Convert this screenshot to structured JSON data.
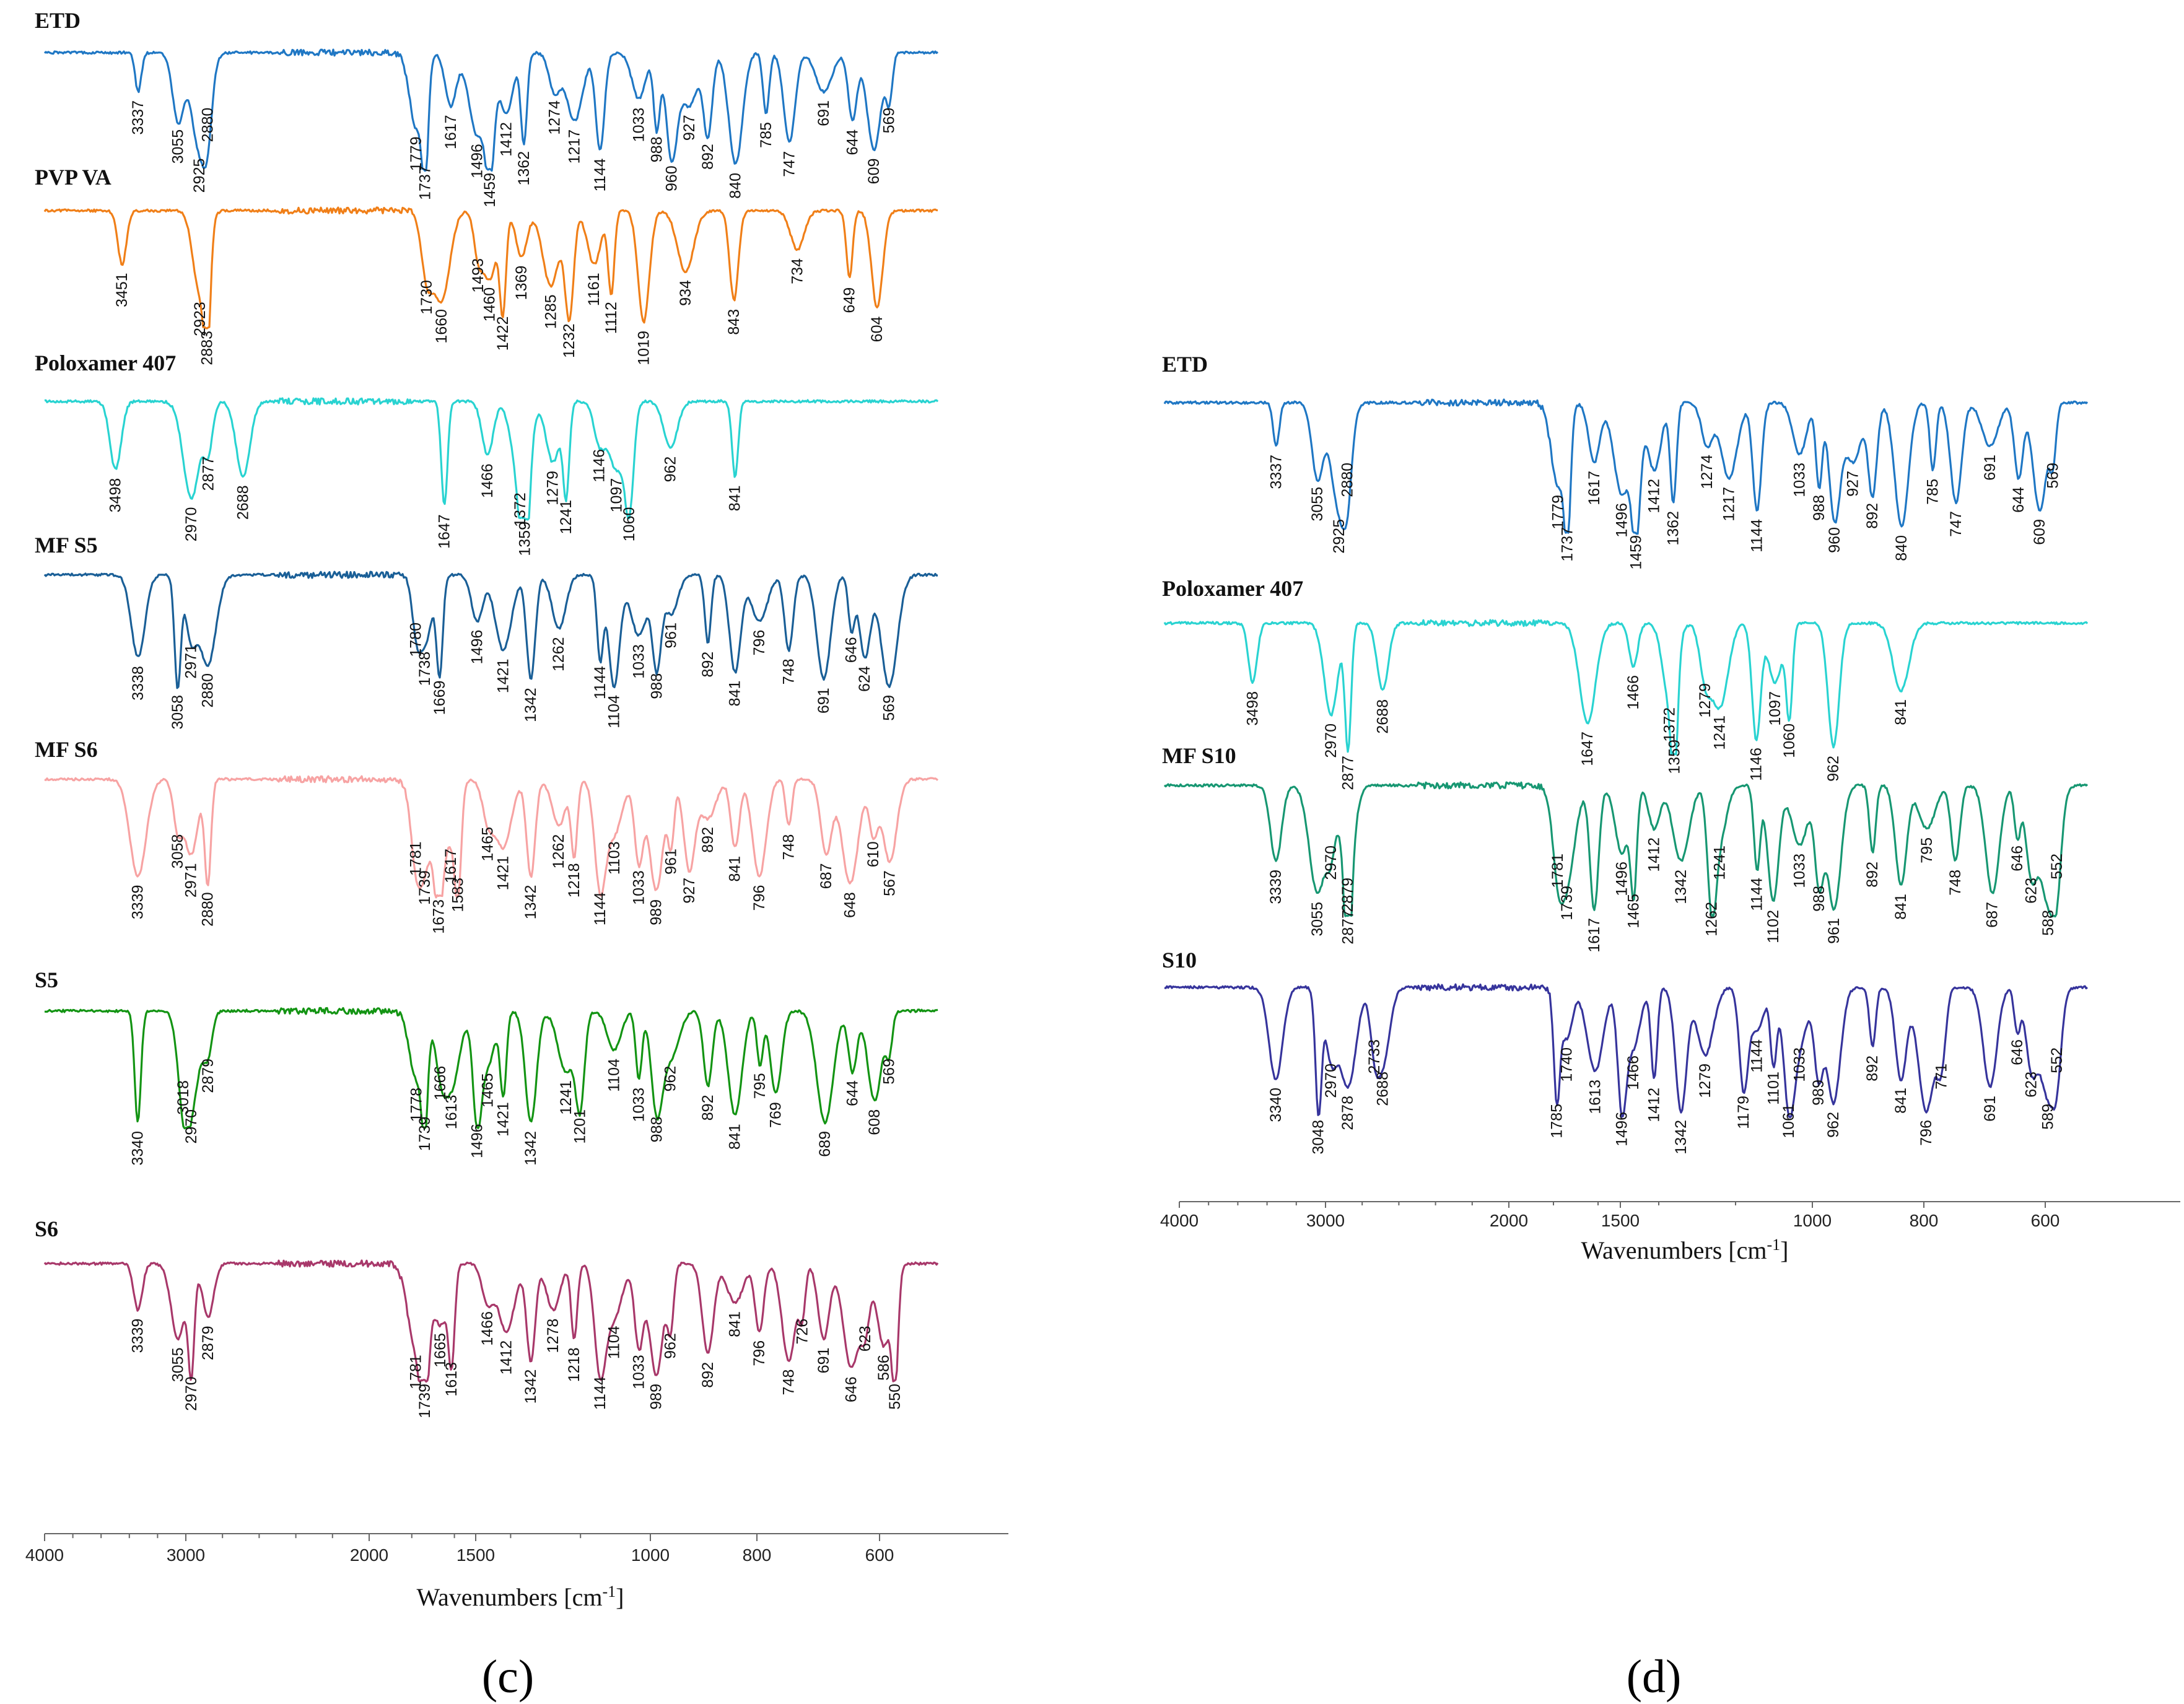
{
  "chart_data": [
    {
      "panel": "(c)",
      "type": "line",
      "title": "",
      "xlabel": "Wavenumbers [cm-1]",
      "ylabel": "",
      "xlim": [
        4000,
        400
      ],
      "x_ticks": [
        4000,
        3000,
        2000,
        1500,
        1000,
        800,
        600
      ],
      "series": [
        {
          "name": "ETD",
          "color": "#1f77c4",
          "peaks": [
            3337,
            3055,
            2925,
            2880,
            1779,
            1737,
            1617,
            1496,
            1459,
            1412,
            1362,
            1274,
            1217,
            1144,
            1033,
            988,
            960,
            927,
            892,
            840,
            785,
            747,
            691,
            644,
            609,
            569
          ]
        },
        {
          "name": "PVP VA",
          "color": "#f07f18",
          "peaks": [
            3451,
            2923,
            2883,
            1730,
            1660,
            1493,
            1460,
            1422,
            1369,
            1285,
            1232,
            1161,
            1112,
            1019,
            934,
            843,
            734,
            649,
            604
          ]
        },
        {
          "name": "Poloxamer 407",
          "color": "#29d3d1",
          "peaks": [
            3498,
            2970,
            2877,
            2688,
            1647,
            1466,
            1372,
            1359,
            1279,
            1241,
            1146,
            1097,
            1060,
            962,
            841
          ]
        },
        {
          "name": "MF S5",
          "color": "#1a5f97",
          "peaks": [
            3338,
            3058,
            2971,
            2880,
            1780,
            1738,
            1669,
            1496,
            1421,
            1342,
            1262,
            1144,
            1104,
            1033,
            988,
            961,
            892,
            841,
            796,
            748,
            691,
            646,
            624,
            569
          ]
        },
        {
          "name": "MF S6",
          "color": "#f7a3a3",
          "peaks": [
            3339,
            3058,
            2971,
            2880,
            1781,
            1739,
            1673,
            1617,
            1583,
            1465,
            1421,
            1342,
            1262,
            1218,
            1144,
            1103,
            1033,
            989,
            961,
            927,
            892,
            841,
            796,
            748,
            687,
            648,
            610,
            567
          ]
        },
        {
          "name": "S5",
          "color": "#139413",
          "peaks": [
            3340,
            3018,
            2970,
            2879,
            1778,
            1739,
            1666,
            1613,
            1496,
            1465,
            1421,
            1342,
            1241,
            1201,
            1104,
            1033,
            988,
            962,
            892,
            841,
            795,
            769,
            689,
            644,
            608,
            569
          ]
        },
        {
          "name": "S6",
          "color": "#a8386a",
          "peaks": [
            3339,
            3055,
            2970,
            2879,
            1781,
            1739,
            1665,
            1613,
            1466,
            1412,
            1342,
            1278,
            1218,
            1144,
            1104,
            1033,
            989,
            962,
            892,
            841,
            796,
            748,
            726,
            691,
            646,
            623,
            586,
            550
          ]
        }
      ]
    },
    {
      "panel": "(d)",
      "type": "line",
      "title": "",
      "xlabel": "Wavenumbers [cm-1]",
      "ylabel": "",
      "xlim": [
        4000,
        400
      ],
      "x_ticks": [
        4000,
        3000,
        2000,
        1500,
        1000,
        800,
        600
      ],
      "series": [
        {
          "name": "ETD",
          "color": "#1f77c4",
          "peaks": [
            3337,
            3055,
            2925,
            2880,
            1779,
            1737,
            1617,
            1496,
            1459,
            1412,
            1362,
            1274,
            1217,
            1144,
            1033,
            988,
            960,
            927,
            892,
            840,
            785,
            747,
            691,
            644,
            609,
            569
          ]
        },
        {
          "name": "Poloxamer 407",
          "color": "#29d3d1",
          "peaks": [
            3498,
            2970,
            2877,
            2688,
            1647,
            1466,
            1372,
            1359,
            1279,
            1241,
            1146,
            1097,
            1060,
            962,
            841
          ]
        },
        {
          "name": "MF S10",
          "color": "#179772",
          "peaks": [
            3339,
            3055,
            2970,
            2879,
            2877,
            1781,
            1739,
            1617,
            1496,
            1465,
            1412,
            1342,
            1262,
            1241,
            1144,
            1102,
            1033,
            988,
            961,
            892,
            841,
            795,
            748,
            687,
            646,
            623,
            588,
            552
          ]
        },
        {
          "name": "S10",
          "color": "#36349c",
          "peaks": [
            3340,
            3048,
            2970,
            2878,
            2733,
            2688,
            1785,
            1740,
            1613,
            1496,
            1466,
            1412,
            1342,
            1279,
            1179,
            1144,
            1101,
            1061,
            1033,
            989,
            962,
            892,
            841,
            796,
            771,
            691,
            646,
            623,
            589,
            552
          ]
        }
      ]
    }
  ],
  "captions": {
    "c": "(c)",
    "d": "(d)"
  },
  "unicode": {
    "superscript_minus_one": "-1"
  }
}
